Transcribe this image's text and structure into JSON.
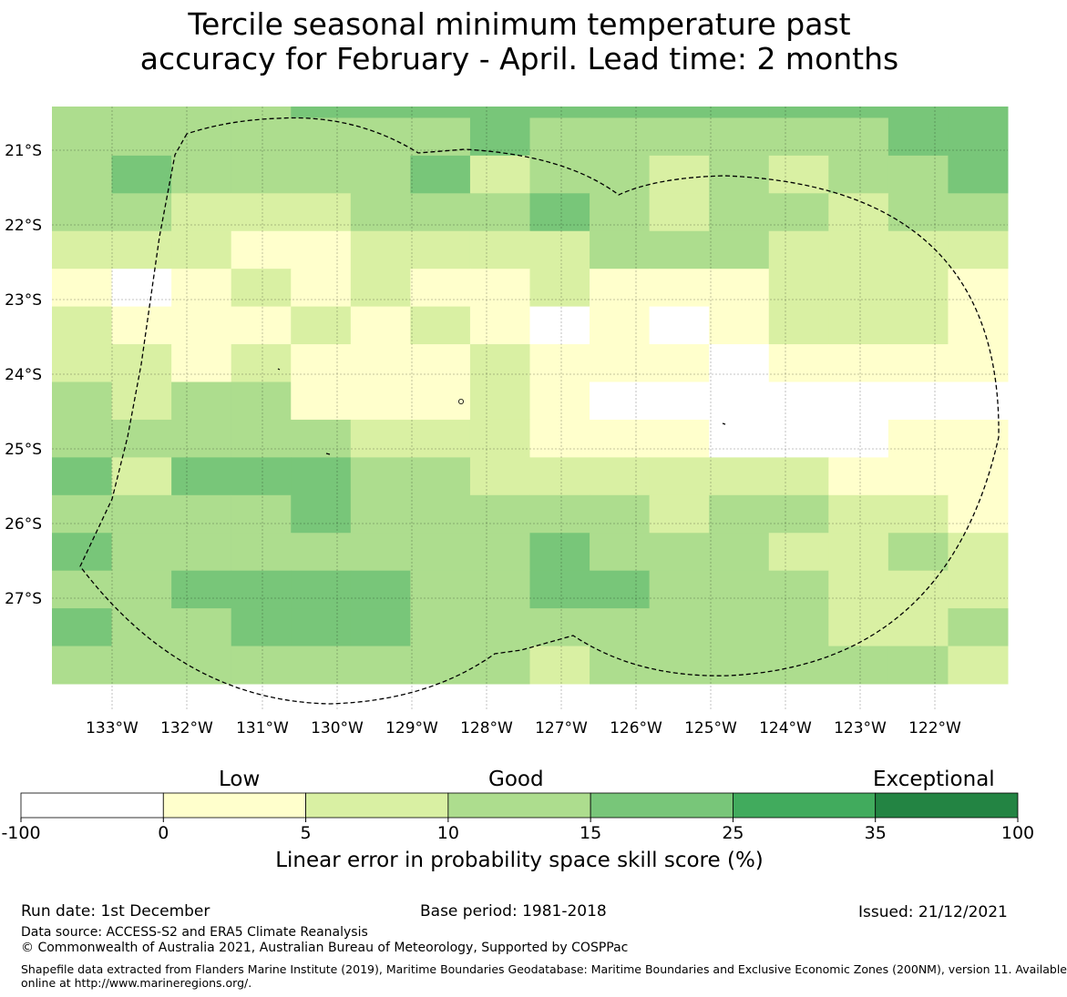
{
  "title": {
    "line1": "Tercile seasonal minimum temperature past",
    "line2": "accuracy for February - April. Lead time: 2 months"
  },
  "map": {
    "lon_labels": [
      "133°W",
      "132°W",
      "131°W",
      "130°W",
      "129°W",
      "128°W",
      "127°W",
      "126°W",
      "125°W",
      "124°W",
      "123°W",
      "122°W"
    ],
    "lat_labels": [
      "21°S",
      "22°S",
      "23°S",
      "24°S",
      "25°S",
      "26°S",
      "27°S"
    ],
    "class_colors": [
      "#ffffff",
      "#ffffcc",
      "#d9f0a3",
      "#addd8e",
      "#78c679",
      "#41ab5d",
      "#238443"
    ],
    "grid_classes": [
      [
        3,
        3,
        3,
        3,
        4,
        4,
        4,
        4,
        4,
        4,
        4,
        4,
        4,
        4,
        4,
        4
      ],
      [
        3,
        3,
        3,
        3,
        3,
        3,
        3,
        4,
        3,
        3,
        3,
        3,
        3,
        3,
        4,
        4
      ],
      [
        3,
        4,
        3,
        3,
        3,
        3,
        4,
        2,
        3,
        3,
        2,
        3,
        2,
        3,
        3,
        4
      ],
      [
        3,
        3,
        2,
        2,
        2,
        3,
        3,
        3,
        4,
        3,
        2,
        3,
        3,
        2,
        3,
        3
      ],
      [
        2,
        2,
        2,
        1,
        1,
        2,
        2,
        2,
        2,
        3,
        3,
        3,
        2,
        2,
        2,
        2
      ],
      [
        1,
        0,
        1,
        2,
        1,
        2,
        1,
        1,
        2,
        1,
        1,
        1,
        2,
        2,
        2,
        1
      ],
      [
        2,
        1,
        1,
        1,
        2,
        1,
        2,
        1,
        0,
        1,
        0,
        1,
        2,
        2,
        2,
        1
      ],
      [
        2,
        2,
        1,
        2,
        1,
        1,
        1,
        2,
        1,
        1,
        1,
        0,
        1,
        1,
        1,
        1
      ],
      [
        3,
        2,
        3,
        3,
        1,
        1,
        1,
        2,
        1,
        0,
        0,
        0,
        0,
        0,
        0,
        0
      ],
      [
        3,
        3,
        3,
        3,
        3,
        2,
        2,
        2,
        1,
        1,
        1,
        0,
        0,
        0,
        1,
        1
      ],
      [
        4,
        2,
        4,
        4,
        4,
        3,
        3,
        2,
        2,
        2,
        2,
        2,
        2,
        1,
        1,
        1
      ],
      [
        3,
        3,
        3,
        3,
        4,
        3,
        3,
        3,
        3,
        3,
        2,
        3,
        3,
        2,
        2,
        1
      ],
      [
        4,
        3,
        3,
        3,
        3,
        3,
        3,
        3,
        4,
        3,
        3,
        3,
        2,
        2,
        3,
        2
      ],
      [
        3,
        3,
        4,
        4,
        4,
        4,
        3,
        3,
        4,
        4,
        3,
        3,
        3,
        2,
        2,
        2
      ],
      [
        4,
        3,
        3,
        4,
        4,
        4,
        3,
        3,
        3,
        3,
        3,
        3,
        3,
        2,
        2,
        3
      ],
      [
        3,
        3,
        3,
        3,
        3,
        3,
        3,
        3,
        2,
        3,
        3,
        3,
        3,
        3,
        3,
        2
      ]
    ]
  },
  "colorbar": {
    "category_low": "Low",
    "category_good": "Good",
    "category_exceptional": "Exceptional",
    "ticks": [
      "-100",
      "0",
      "5",
      "10",
      "15",
      "25",
      "35",
      "100"
    ],
    "label": "Linear error in probability space skill score (%)",
    "colors": [
      "#ffffff",
      "#ffffcc",
      "#d9f0a3",
      "#addd8e",
      "#78c679",
      "#41ab5d",
      "#238443"
    ]
  },
  "footer": {
    "run_date": "Run date: 1st December",
    "base_period": "Base period: 1981-2018",
    "issued": "Issued: 21/12/2021",
    "data_source": "Data source: ACCESS-S2 and ERA5 Climate Reanalysis",
    "copyright": "© Commonwealth of Australia 2021, Australian Bureau of Meteorology, Supported by COSPPac",
    "shapefile_line1": "Shapefile data extracted from Flanders Marine Institute (2019), Maritime Boundaries Geodatabase: Maritime Boundaries and Exclusive Economic Zones (200NM), version 11. Available",
    "shapefile_line2": "online at http://www.marineregions.org/."
  }
}
